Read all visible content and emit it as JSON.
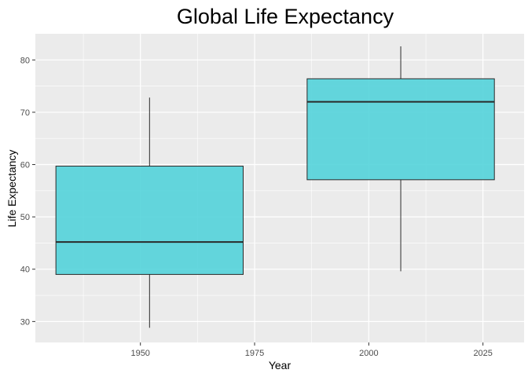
{
  "chart_data": {
    "type": "boxplot",
    "title": "Global Life Expectancy",
    "xlabel": "Year",
    "ylabel": "Life Expectancy",
    "xlim": [
      1927,
      2034
    ],
    "ylim": [
      26,
      85
    ],
    "x_ticks": [
      1950,
      1975,
      2000,
      2025
    ],
    "y_ticks": [
      30,
      40,
      50,
      60,
      70,
      80
    ],
    "grid": true,
    "fill_color": "#4fd1d9",
    "box_color": "#2a2a2a",
    "panel_color": "#ebebeb",
    "boxes": [
      {
        "x_min": 1931.5,
        "x_max": 1972.5,
        "x_center": 1952,
        "whisker_low": 28.8,
        "q1": 39.0,
        "median": 45.2,
        "q3": 59.7,
        "whisker_high": 72.8
      },
      {
        "x_min": 1986.5,
        "x_max": 2027.5,
        "x_center": 2007,
        "whisker_low": 39.6,
        "q1": 57.1,
        "median": 72.0,
        "q3": 76.4,
        "whisker_high": 82.6
      }
    ]
  }
}
